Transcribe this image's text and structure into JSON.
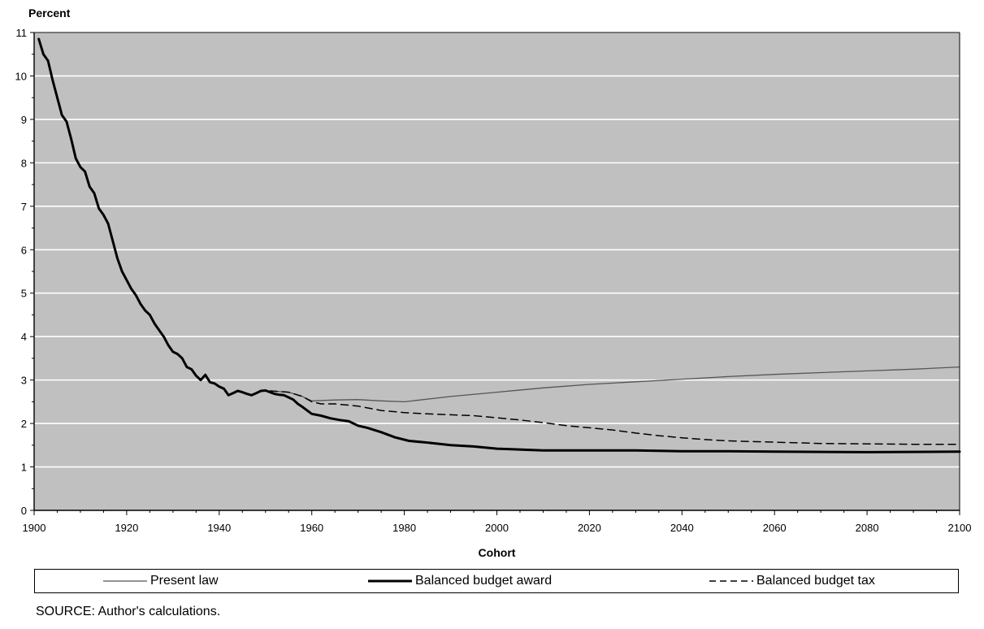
{
  "chart_data": {
    "type": "line",
    "ylabel": "Percent",
    "xlabel": "Cohort",
    "xlim": [
      1900,
      2100
    ],
    "ylim": [
      0,
      11
    ],
    "x_ticks": [
      1900,
      1920,
      1940,
      1960,
      1980,
      2000,
      2020,
      2040,
      2060,
      2080,
      2100
    ],
    "y_ticks": [
      0,
      1,
      2,
      3,
      4,
      5,
      6,
      7,
      8,
      9,
      10,
      11
    ],
    "grid": "horizontal",
    "plot_background": "#c0c0c0",
    "gridline_color": "#ffffff",
    "legend_placement": "bottom",
    "series": [
      {
        "name": "Present law",
        "style": "thin",
        "color": "#555555",
        "points": [
          [
            1951,
            2.75
          ],
          [
            1955,
            2.72
          ],
          [
            1958,
            2.62
          ],
          [
            1960,
            2.52
          ],
          [
            1965,
            2.54
          ],
          [
            1970,
            2.55
          ],
          [
            1975,
            2.52
          ],
          [
            1980,
            2.5
          ],
          [
            1990,
            2.62
          ],
          [
            2000,
            2.72
          ],
          [
            2010,
            2.82
          ],
          [
            2020,
            2.9
          ],
          [
            2030,
            2.96
          ],
          [
            2040,
            3.02
          ],
          [
            2050,
            3.08
          ],
          [
            2060,
            3.13
          ],
          [
            2070,
            3.17
          ],
          [
            2080,
            3.21
          ],
          [
            2090,
            3.25
          ],
          [
            2100,
            3.3
          ]
        ]
      },
      {
        "name": "Balanced budget award",
        "style": "thick",
        "color": "#000000",
        "points": [
          [
            1901,
            10.85
          ],
          [
            1902,
            10.5
          ],
          [
            1903,
            10.35
          ],
          [
            1904,
            9.9
          ],
          [
            1905,
            9.5
          ],
          [
            1906,
            9.1
          ],
          [
            1907,
            8.95
          ],
          [
            1908,
            8.55
          ],
          [
            1909,
            8.1
          ],
          [
            1910,
            7.9
          ],
          [
            1911,
            7.8
          ],
          [
            1912,
            7.45
          ],
          [
            1913,
            7.3
          ],
          [
            1914,
            6.95
          ],
          [
            1915,
            6.8
          ],
          [
            1916,
            6.6
          ],
          [
            1917,
            6.2
          ],
          [
            1918,
            5.8
          ],
          [
            1919,
            5.5
          ],
          [
            1920,
            5.3
          ],
          [
            1921,
            5.1
          ],
          [
            1922,
            4.95
          ],
          [
            1923,
            4.75
          ],
          [
            1924,
            4.6
          ],
          [
            1925,
            4.5
          ],
          [
            1926,
            4.3
          ],
          [
            1927,
            4.15
          ],
          [
            1928,
            4.0
          ],
          [
            1929,
            3.8
          ],
          [
            1930,
            3.65
          ],
          [
            1931,
            3.6
          ],
          [
            1932,
            3.5
          ],
          [
            1933,
            3.3
          ],
          [
            1934,
            3.25
          ],
          [
            1935,
            3.1
          ],
          [
            1936,
            3.0
          ],
          [
            1937,
            3.12
          ],
          [
            1938,
            2.95
          ],
          [
            1939,
            2.92
          ],
          [
            1940,
            2.85
          ],
          [
            1941,
            2.8
          ],
          [
            1942,
            2.65
          ],
          [
            1943,
            2.7
          ],
          [
            1944,
            2.75
          ],
          [
            1945,
            2.72
          ],
          [
            1946,
            2.68
          ],
          [
            1947,
            2.65
          ],
          [
            1948,
            2.7
          ],
          [
            1949,
            2.75
          ],
          [
            1950,
            2.76
          ],
          [
            1951,
            2.72
          ],
          [
            1952,
            2.68
          ],
          [
            1953,
            2.66
          ],
          [
            1954,
            2.65
          ],
          [
            1955,
            2.6
          ],
          [
            1956,
            2.55
          ],
          [
            1957,
            2.45
          ],
          [
            1958,
            2.38
          ],
          [
            1959,
            2.3
          ],
          [
            1960,
            2.22
          ],
          [
            1962,
            2.18
          ],
          [
            1964,
            2.12
          ],
          [
            1966,
            2.08
          ],
          [
            1968,
            2.05
          ],
          [
            1970,
            1.95
          ],
          [
            1972,
            1.9
          ],
          [
            1975,
            1.8
          ],
          [
            1978,
            1.68
          ],
          [
            1981,
            1.6
          ],
          [
            1985,
            1.56
          ],
          [
            1990,
            1.5
          ],
          [
            1995,
            1.47
          ],
          [
            2000,
            1.42
          ],
          [
            2010,
            1.38
          ],
          [
            2020,
            1.38
          ],
          [
            2030,
            1.38
          ],
          [
            2040,
            1.36
          ],
          [
            2050,
            1.36
          ],
          [
            2060,
            1.35
          ],
          [
            2080,
            1.34
          ],
          [
            2100,
            1.35
          ]
        ]
      },
      {
        "name": "Balanced budget tax",
        "style": "dashed",
        "color": "#000000",
        "points": [
          [
            1951,
            2.75
          ],
          [
            1955,
            2.72
          ],
          [
            1958,
            2.62
          ],
          [
            1960,
            2.5
          ],
          [
            1962,
            2.45
          ],
          [
            1965,
            2.45
          ],
          [
            1970,
            2.4
          ],
          [
            1975,
            2.3
          ],
          [
            1980,
            2.25
          ],
          [
            1985,
            2.22
          ],
          [
            1990,
            2.2
          ],
          [
            1995,
            2.18
          ],
          [
            2000,
            2.13
          ],
          [
            2005,
            2.08
          ],
          [
            2010,
            2.02
          ],
          [
            2015,
            1.95
          ],
          [
            2020,
            1.9
          ],
          [
            2025,
            1.85
          ],
          [
            2030,
            1.78
          ],
          [
            2035,
            1.72
          ],
          [
            2040,
            1.67
          ],
          [
            2045,
            1.63
          ],
          [
            2050,
            1.6
          ],
          [
            2060,
            1.57
          ],
          [
            2070,
            1.54
          ],
          [
            2080,
            1.53
          ],
          [
            2090,
            1.52
          ],
          [
            2100,
            1.52
          ]
        ]
      }
    ]
  },
  "source_note": "SOURCE:  Author's calculations."
}
